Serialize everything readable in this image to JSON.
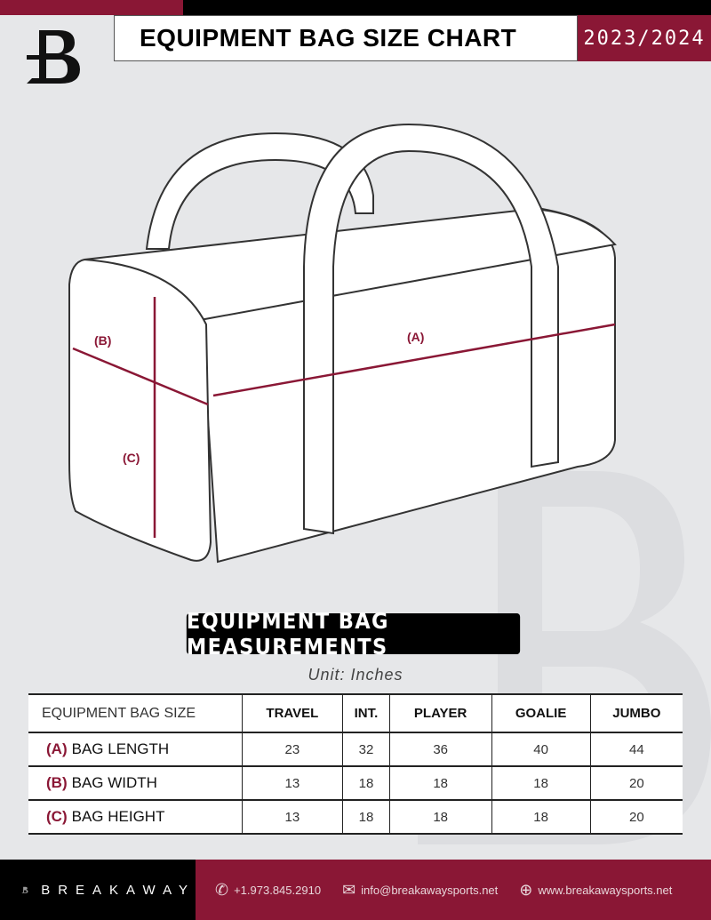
{
  "header": {
    "title": "EQUIPMENT BAG SIZE CHART",
    "season": "2023/2024"
  },
  "diagram": {
    "labels": {
      "a": "(A)",
      "b": "(B)",
      "c": "(C)"
    }
  },
  "measurements": {
    "title": "EQUIPMENT BAG MEASUREMENTS",
    "unit": "Unit: Inches"
  },
  "table": {
    "corner": "EQUIPMENT BAG SIZE",
    "columns": [
      "TRAVEL",
      "INT.",
      "PLAYER",
      "GOALIE",
      "JUMBO"
    ],
    "rows": [
      {
        "key": "(A)",
        "label": "BAG LENGTH",
        "values": [
          "23",
          "32",
          "36",
          "40",
          "44"
        ]
      },
      {
        "key": "(B)",
        "label": "BAG WIDTH",
        "values": [
          "13",
          "18",
          "18",
          "18",
          "20"
        ]
      },
      {
        "key": "(C)",
        "label": "BAG HEIGHT",
        "values": [
          "13",
          "18",
          "18",
          "18",
          "20"
        ]
      }
    ]
  },
  "footer": {
    "brand": "BREAKAWAY",
    "phone": "+1.973.845.2910",
    "email": "info@breakawaysports.net",
    "website": "www.breakawaysports.net"
  },
  "colors": {
    "accent": "#8a1735",
    "background": "#e6e7e9"
  }
}
